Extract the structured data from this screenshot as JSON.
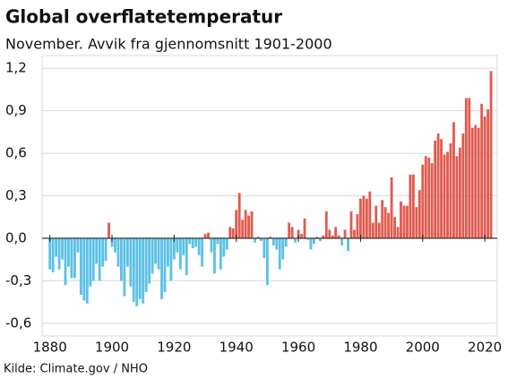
{
  "chart_data": {
    "type": "bar",
    "title": "Global overflatetemperatur",
    "subtitle": "November. Avvik fra gjennomsnitt 1901-2000",
    "source": "Kilde: Climate.gov / NHO",
    "x": [
      1880,
      1881,
      1882,
      1883,
      1884,
      1885,
      1886,
      1887,
      1888,
      1889,
      1890,
      1891,
      1892,
      1893,
      1894,
      1895,
      1896,
      1897,
      1898,
      1899,
      1900,
      1901,
      1902,
      1903,
      1904,
      1905,
      1906,
      1907,
      1908,
      1909,
      1910,
      1911,
      1912,
      1913,
      1914,
      1915,
      1916,
      1917,
      1918,
      1919,
      1920,
      1921,
      1922,
      1923,
      1924,
      1925,
      1926,
      1927,
      1928,
      1929,
      1930,
      1931,
      1932,
      1933,
      1934,
      1935,
      1936,
      1937,
      1938,
      1939,
      1940,
      1941,
      1942,
      1943,
      1944,
      1945,
      1946,
      1947,
      1948,
      1949,
      1950,
      1951,
      1952,
      1953,
      1954,
      1955,
      1956,
      1957,
      1958,
      1959,
      1960,
      1961,
      1962,
      1963,
      1964,
      1965,
      1966,
      1967,
      1968,
      1969,
      1970,
      1971,
      1972,
      1973,
      1974,
      1975,
      1976,
      1977,
      1978,
      1979,
      1980,
      1981,
      1982,
      1983,
      1984,
      1985,
      1986,
      1987,
      1988,
      1989,
      1990,
      1991,
      1992,
      1993,
      1994,
      1995,
      1996,
      1997,
      1998,
      1999,
      2000,
      2001,
      2002,
      2003,
      2004,
      2005,
      2006,
      2007,
      2008,
      2009,
      2010,
      2011,
      2012,
      2013,
      2014,
      2015,
      2016,
      2017,
      2018,
      2019,
      2020,
      2021,
      2022
    ],
    "values": [
      -0.22,
      -0.24,
      -0.13,
      -0.22,
      -0.15,
      -0.33,
      -0.2,
      -0.28,
      -0.28,
      -0.1,
      -0.4,
      -0.44,
      -0.46,
      -0.34,
      -0.3,
      -0.18,
      -0.3,
      -0.2,
      -0.16,
      0.11,
      -0.06,
      -0.1,
      -0.2,
      -0.3,
      -0.41,
      -0.2,
      -0.34,
      -0.45,
      -0.48,
      -0.43,
      -0.46,
      -0.38,
      -0.32,
      -0.25,
      -0.18,
      -0.22,
      -0.43,
      -0.38,
      -0.2,
      -0.3,
      -0.15,
      -0.1,
      -0.22,
      -0.12,
      -0.26,
      -0.04,
      -0.07,
      -0.06,
      -0.12,
      -0.2,
      0.03,
      0.04,
      -0.1,
      -0.25,
      -0.04,
      -0.22,
      -0.13,
      -0.08,
      0.08,
      0.07,
      0.2,
      0.32,
      0.13,
      0.2,
      0.16,
      0.19,
      -0.03,
      0.01,
      -0.02,
      -0.14,
      -0.33,
      0.01,
      -0.05,
      -0.08,
      -0.22,
      -0.15,
      -0.06,
      0.11,
      0.08,
      -0.03,
      0.06,
      0.03,
      0.14,
      -0.01,
      -0.08,
      -0.04,
      0.01,
      -0.02,
      0.02,
      0.19,
      0.06,
      0.02,
      0.08,
      0.02,
      -0.05,
      0.06,
      -0.09,
      0.19,
      0.06,
      0.17,
      0.28,
      0.3,
      0.28,
      0.33,
      0.11,
      0.23,
      0.11,
      0.27,
      0.22,
      0.18,
      0.43,
      0.15,
      0.08,
      0.26,
      0.23,
      0.23,
      0.45,
      0.45,
      0.22,
      0.34,
      0.52,
      0.58,
      0.57,
      0.53,
      0.69,
      0.74,
      0.7,
      0.59,
      0.61,
      0.67,
      0.82,
      0.58,
      0.64,
      0.74,
      0.99,
      0.99,
      0.78,
      0.8,
      0.78,
      0.95,
      0.86,
      0.91,
      1.18
    ],
    "positive_color": "#e15b50",
    "negative_color": "#5bc1e6",
    "xlim": [
      1877.5,
      2024
    ],
    "xticks": [
      1880,
      1900,
      1920,
      1940,
      1960,
      1980,
      2000,
      2020
    ],
    "ylim": [
      -0.69,
      1.29
    ],
    "yticks": [
      {
        "value": -0.6,
        "label": "-0,6"
      },
      {
        "value": -0.3,
        "label": "-0,3"
      },
      {
        "value": 0,
        "label": "0,0"
      },
      {
        "value": 0.3,
        "label": "0,3"
      },
      {
        "value": 0.6,
        "label": "0,6"
      },
      {
        "value": 0.9,
        "label": "0,9"
      },
      {
        "value": 1.2,
        "label": "1,2"
      }
    ],
    "grid": true
  }
}
